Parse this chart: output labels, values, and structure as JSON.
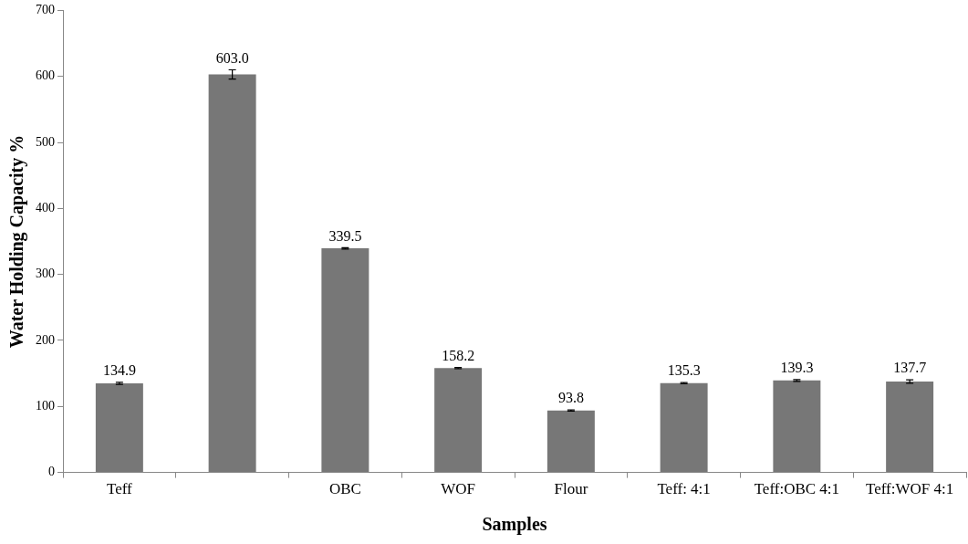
{
  "chart_data": {
    "type": "bar",
    "xlabel": "Samples",
    "ylabel": "Water Holding Capacity %",
    "categories": [
      "Teff",
      null,
      "OBC",
      "WOF",
      "Flour",
      "Teff: 4:1",
      "Teff:OBC 4:1",
      "Teff:WOF 4:1"
    ],
    "values": [
      134.9,
      603.0,
      339.5,
      158.2,
      93.8,
      135.3,
      139.3,
      137.7
    ],
    "value_labels": [
      "134.9",
      "603.0",
      "339.5",
      "158.2",
      "93.8",
      "135.3",
      "139.3",
      "137.7"
    ],
    "errors": [
      1.5,
      7,
      1,
      1,
      1,
      1,
      1.5,
      2.5
    ],
    "color": "#777777",
    "ylim": [
      0,
      700
    ],
    "yticks": [
      0,
      100,
      200,
      300,
      400,
      500,
      600,
      700
    ],
    "grid": false,
    "legend": false
  }
}
